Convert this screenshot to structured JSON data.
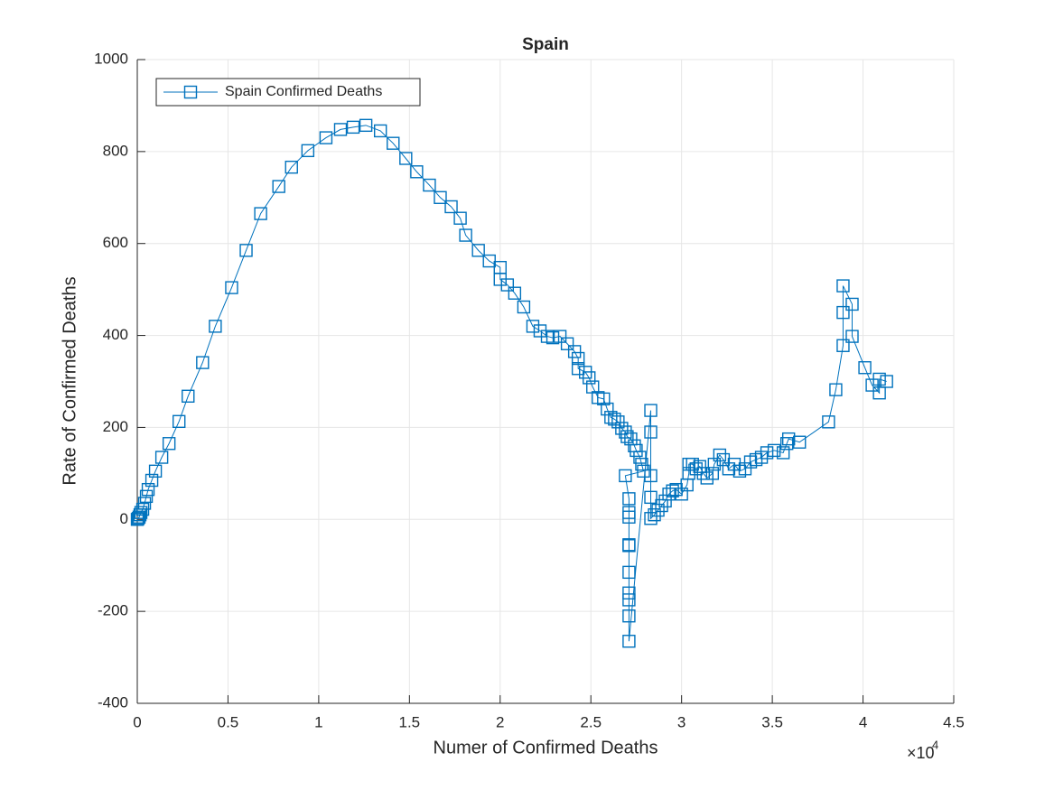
{
  "chart_data": {
    "type": "scatter-line",
    "title": "Spain",
    "xlabel": "Numer of Confirmed Deaths",
    "ylabel": "Rate of Confirmed Deaths",
    "x_multiplier": "×10",
    "x_multiplier_exp": "4",
    "legend_position": "upper-left",
    "grid": true,
    "xlim": [
      0,
      45000
    ],
    "ylim": [
      -400,
      1000
    ],
    "xticks": [
      0,
      {
        "value": 5000,
        "label": "0.5"
      },
      {
        "value": 10000,
        "label": "1"
      },
      {
        "value": 15000,
        "label": "1.5"
      },
      {
        "value": 20000,
        "label": "2"
      },
      {
        "value": 25000,
        "label": "2.5"
      },
      {
        "value": 30000,
        "label": "3"
      },
      {
        "value": 35000,
        "label": "3.5"
      },
      {
        "value": 40000,
        "label": "4"
      },
      {
        "value": 45000,
        "label": "4.5"
      }
    ],
    "yticks": [
      -400,
      -200,
      0,
      200,
      400,
      600,
      800,
      1000
    ],
    "x": [
      0,
      50,
      100,
      150,
      200,
      300,
      400,
      500,
      600,
      800,
      1000,
      1350,
      1750,
      2300,
      2800,
      3600,
      4300,
      5200,
      6000,
      6800,
      7800,
      8500,
      9400,
      10400,
      11200,
      11900,
      12600,
      13400,
      14100,
      14800,
      15400,
      16100,
      16700,
      17300,
      17800,
      18100,
      18800,
      19400,
      20000,
      20000,
      20400,
      20800,
      21300,
      21800,
      22200,
      22600,
      22900,
      23300,
      23700,
      24100,
      24300,
      24300,
      24700,
      24900,
      25100,
      25400,
      25700,
      25900,
      26100,
      26300,
      26500,
      26700,
      26900,
      27000,
      27200,
      27400,
      27500,
      27700,
      27800,
      27900,
      26900,
      27100,
      27100,
      27100,
      27100,
      27100,
      27100,
      27100,
      27100,
      27100,
      27100,
      28300,
      28300,
      28300,
      28300,
      28300,
      28500,
      28700,
      28900,
      29100,
      29300,
      29500,
      29700,
      30000,
      30300,
      30400,
      30400,
      30600,
      30800,
      31000,
      31200,
      31400,
      31700,
      31800,
      32100,
      32300,
      32600,
      32900,
      33200,
      33500,
      33800,
      34100,
      34400,
      34700,
      35100,
      35600,
      35800,
      35900,
      36500,
      38100,
      38500,
      38900,
      38900,
      38900,
      39400,
      39400,
      40100,
      40500,
      40900,
      40900,
      41300
    ],
    "series": [
      {
        "name": "Spain Confirmed Deaths",
        "color": "#0072bd",
        "values": [
          0,
          2,
          5,
          10,
          15,
          22,
          35,
          50,
          65,
          85,
          105,
          135,
          165,
          213,
          268,
          341,
          420,
          504,
          585,
          665,
          724,
          766,
          802,
          830,
          848,
          853,
          857,
          845,
          818,
          785,
          756,
          727,
          700,
          680,
          655,
          618,
          585,
          562,
          548,
          522,
          510,
          492,
          462,
          420,
          410,
          398,
          395,
          398,
          382,
          365,
          350,
          328,
          320,
          308,
          288,
          265,
          262,
          240,
          222,
          218,
          212,
          198,
          190,
          180,
          175,
          160,
          150,
          135,
          120,
          105,
          95,
          45,
          15,
          5,
          -55,
          -57,
          -115,
          -160,
          -175,
          -210,
          -265,
          237,
          190,
          95,
          48,
          2,
          10,
          20,
          30,
          40,
          55,
          62,
          65,
          55,
          75,
          100,
          120,
          120,
          110,
          115,
          100,
          90,
          100,
          120,
          140,
          130,
          110,
          120,
          105,
          110,
          125,
          130,
          135,
          145,
          150,
          145,
          165,
          175,
          168,
          212,
          282,
          378,
          450,
          508,
          468,
          398,
          330,
          292,
          275,
          305,
          300
        ]
      }
    ]
  }
}
